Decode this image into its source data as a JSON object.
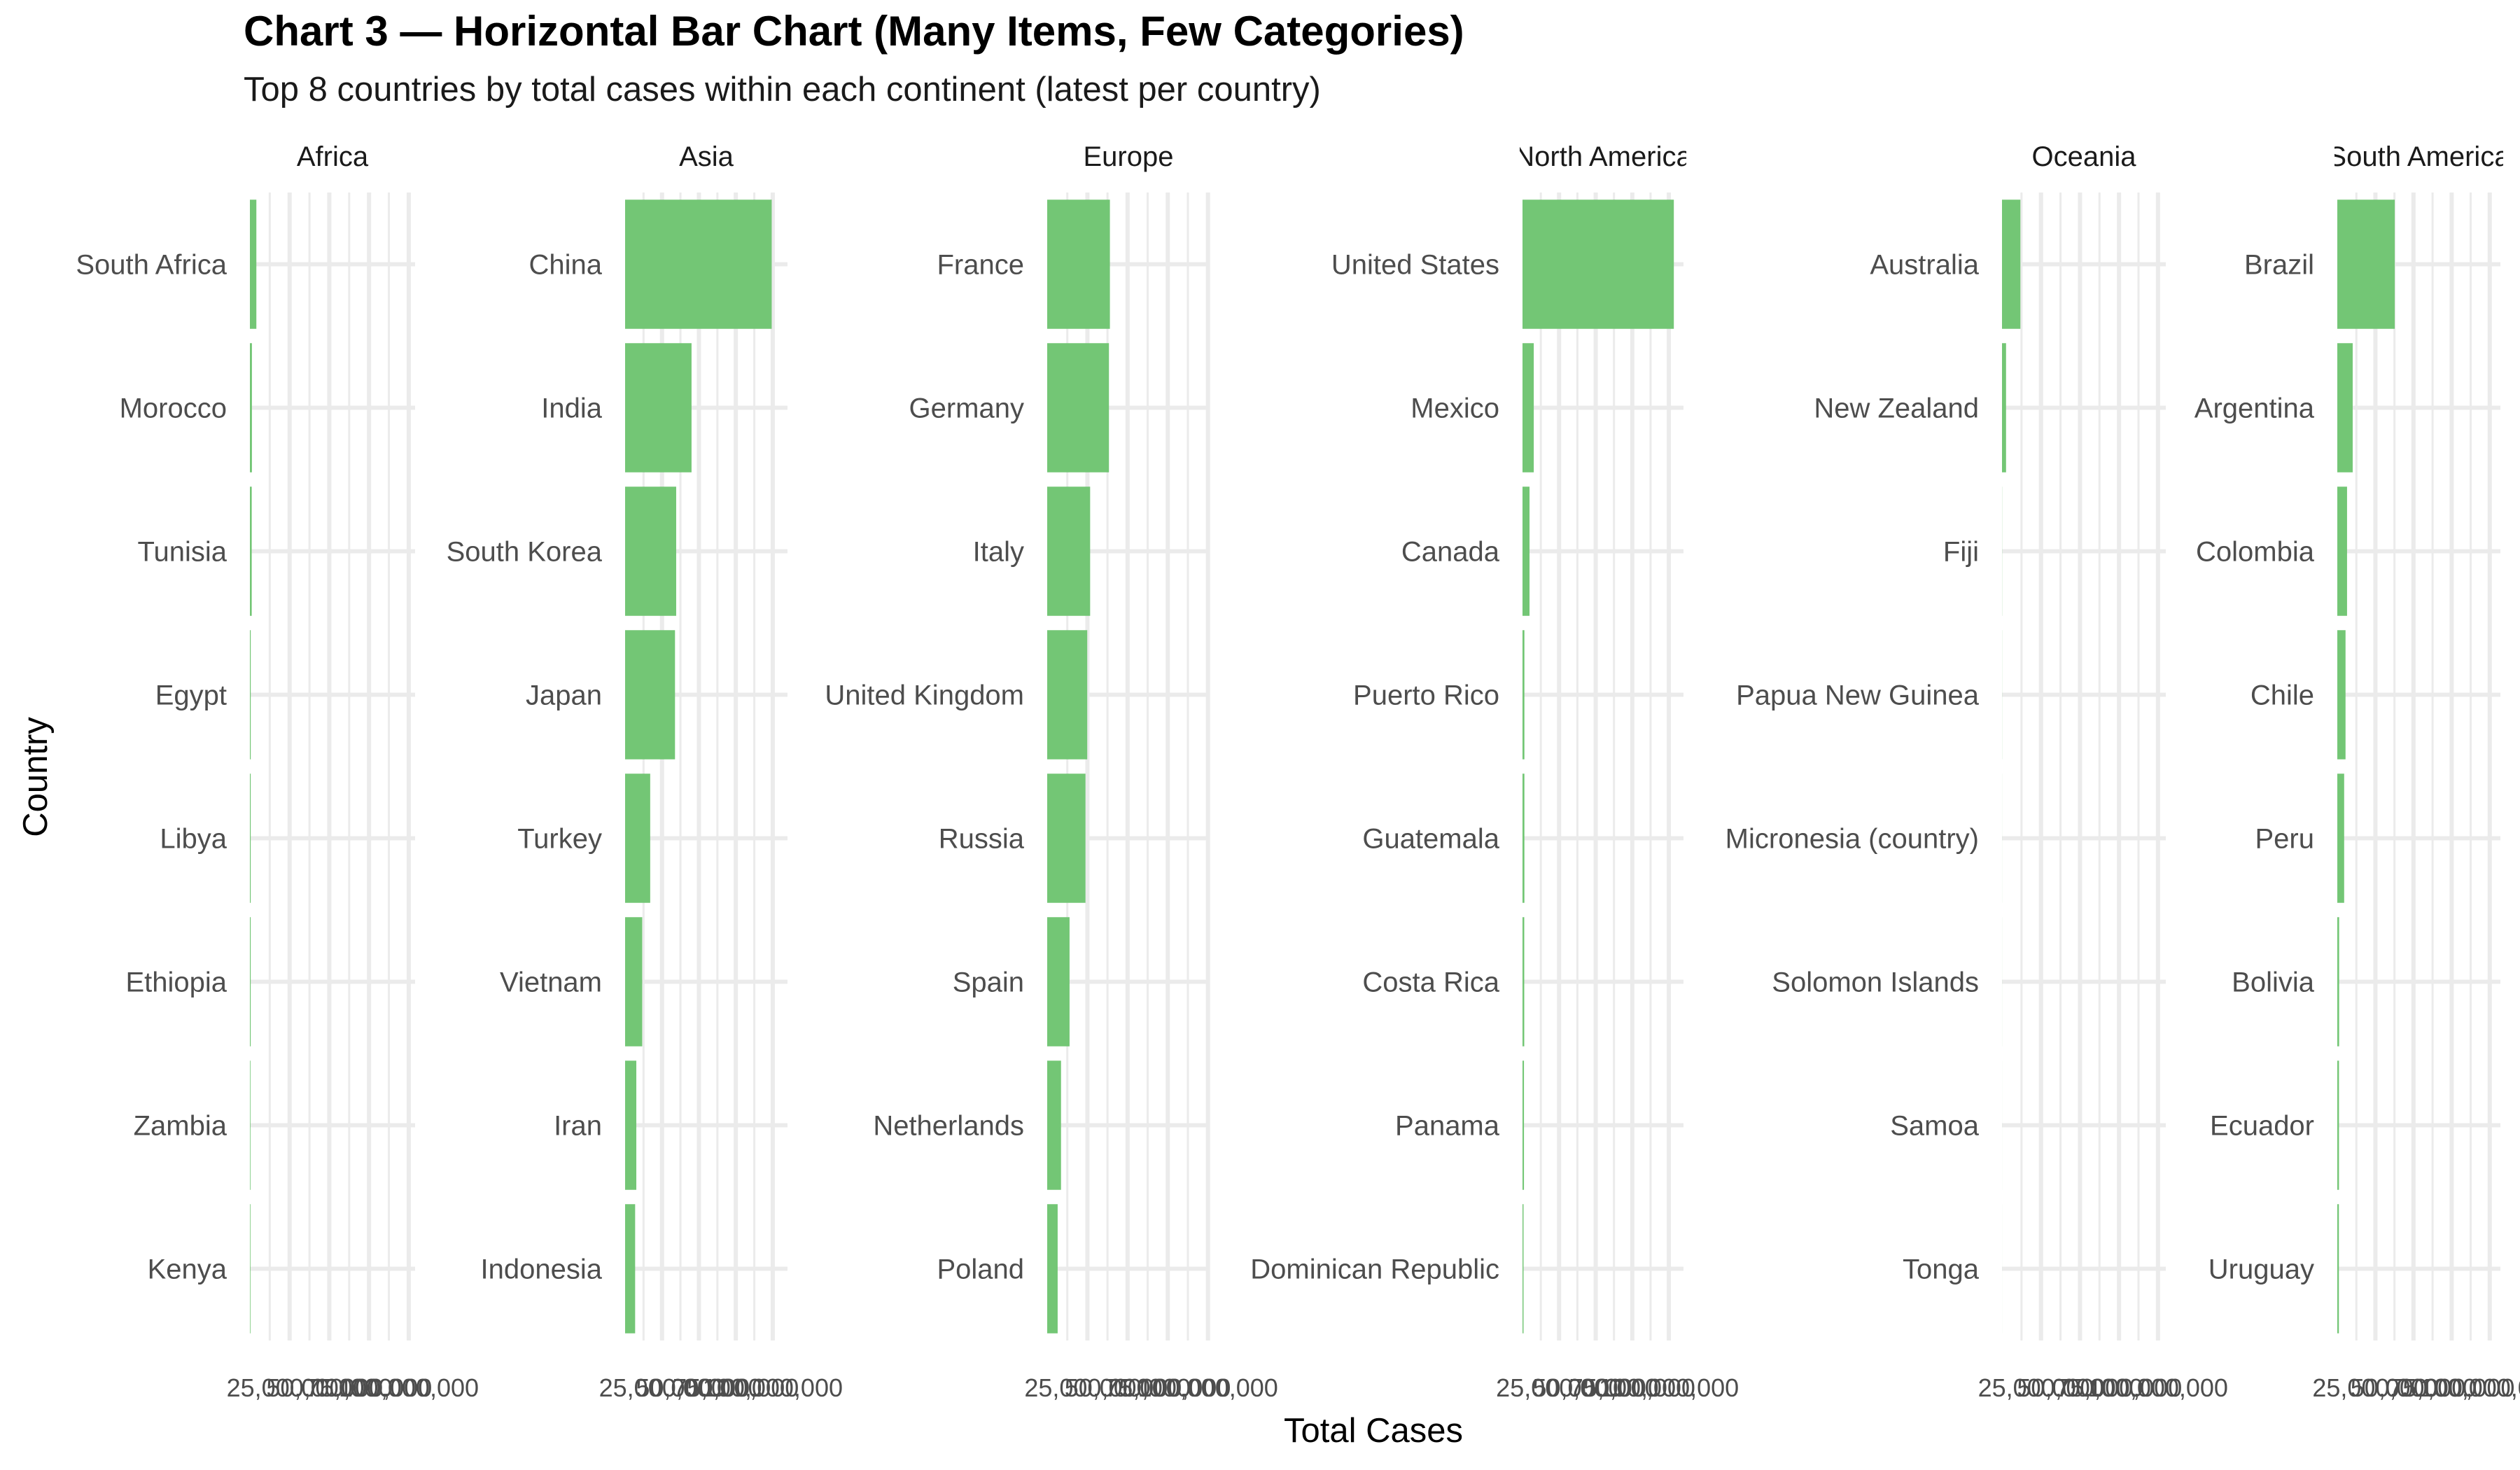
{
  "chart_data": {
    "type": "bar",
    "orientation": "horizontal",
    "title": "Chart 3 — Horizontal Bar Chart (Many Items, Few Categories)",
    "subtitle": "Top 8 countries by total cases within each continent (latest per country)",
    "xlabel": "Total Cases",
    "ylabel": "Country",
    "bar_color": "#73c675",
    "grid": true,
    "legend": "none",
    "x_tick_labels": [
      "25,000,000",
      "50,000,000",
      "75,000,000",
      "100,000,000"
    ],
    "facets": [
      {
        "name": "Africa",
        "xlim": [
          0,
          104000000
        ],
        "categories": [
          "South Africa",
          "Morocco",
          "Tunisia",
          "Egypt",
          "Libya",
          "Ethiopia",
          "Zambia",
          "Kenya"
        ],
        "values": [
          4070000,
          1270000,
          1150000,
          516000,
          507000,
          500000,
          349000,
          344000
        ]
      },
      {
        "name": "Asia",
        "xlim": [
          0,
          110000000
        ],
        "categories": [
          "China",
          "India",
          "South Korea",
          "Japan",
          "Turkey",
          "Vietnam",
          "Iran",
          "Indonesia"
        ],
        "values": [
          99300000,
          45000000,
          34600000,
          33800000,
          17000000,
          11600000,
          7600000,
          6800000
        ]
      },
      {
        "name": "Europe",
        "xlim": [
          0,
          101000000
        ],
        "categories": [
          "France",
          "Germany",
          "Italy",
          "United Kingdom",
          "Russia",
          "Spain",
          "Netherlands",
          "Poland"
        ],
        "values": [
          39000000,
          38400000,
          26700000,
          24900000,
          23800000,
          13900000,
          8600000,
          6500000
        ]
      },
      {
        "name": "North America",
        "xlim": [
          0,
          110000000
        ],
        "categories": [
          "United States",
          "Mexico",
          "Canada",
          "Puerto Rico",
          "Guatemala",
          "Costa Rica",
          "Panama",
          "Dominican Republic"
        ],
        "values": [
          103400000,
          7700000,
          4800000,
          1300000,
          1300000,
          1200000,
          1000000,
          700000
        ]
      },
      {
        "name": "Oceania",
        "xlim": [
          0,
          105000000
        ],
        "categories": [
          "Australia",
          "New Zealand",
          "Fiji",
          "Papua New Guinea",
          "Micronesia (country)",
          "Solomon Islands",
          "Samoa",
          "Tonga"
        ],
        "values": [
          11800000,
          2600000,
          69000,
          46900,
          26500,
          25000,
          17000,
          16000
        ]
      },
      {
        "name": "South America",
        "xlim": [
          0,
          107000000
        ],
        "categories": [
          "Brazil",
          "Argentina",
          "Colombia",
          "Chile",
          "Peru",
          "Bolivia",
          "Ecuador",
          "Uruguay"
        ],
        "values": [
          37700000,
          10100000,
          6400000,
          5400000,
          4500000,
          1200000,
          1100000,
          1040000
        ]
      }
    ]
  }
}
